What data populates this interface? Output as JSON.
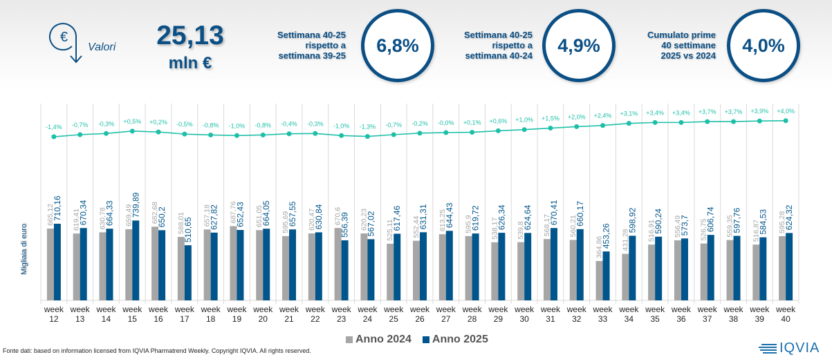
{
  "header": {
    "icon": "euro-down-arrow-icon",
    "metric_label": "Valori",
    "kpi_value": "25,13",
    "kpi_unit": "mln €",
    "stats": [
      {
        "label_lines": [
          "Settimana 40-25",
          "rispetto a",
          "settimana 39-25"
        ],
        "value": "6,8%"
      },
      {
        "label_lines": [
          "Settimana 40-25",
          "rispetto a",
          "settimana 40-24"
        ],
        "value": "4,9%"
      },
      {
        "label_lines": [
          "Cumulato prime",
          "40 settimane",
          "2025 vs 2024"
        ],
        "value": "4,0%"
      }
    ]
  },
  "colors": {
    "primary": "#0b4f85",
    "series_2024": "#a6a6a6",
    "series_2025": "#00568c",
    "line": "#1dbfa8"
  },
  "chart_data": {
    "type": "bar",
    "title": "",
    "xlabel": "",
    "ylabel": "Migliaia di euro",
    "ylim": [
      0,
      800
    ],
    "categories": [
      "week 12",
      "week 13",
      "week 14",
      "week 15",
      "week 16",
      "week 17",
      "week 18",
      "week 19",
      "week 20",
      "week 21",
      "week 22",
      "week 23",
      "week 24",
      "week 25",
      "week 26",
      "week 27",
      "week 28",
      "week 29",
      "week 30",
      "week 31",
      "week 32",
      "week 33",
      "week 34",
      "week 35",
      "week 36",
      "week 37",
      "week 38",
      "week 39",
      "week 40"
    ],
    "series": [
      {
        "name": "Anno 2024",
        "values": [
          665.12,
          619.41,
          630.78,
          659.49,
          682.68,
          588.01,
          657.18,
          687.76,
          651.05,
          595.69,
          620.47,
          670.6,
          620.23,
          525.11,
          552.44,
          613.25,
          595.9,
          538.17,
          539.8,
          568.17,
          560.21,
          364.86,
          431.28,
          516.91,
          556.49,
          526.75,
          559.35,
          516.87,
          595.28
        ],
        "labels": [
          "665,12",
          "619,41",
          "630,78",
          "659,49",
          "682,68",
          "588,01",
          "657,18",
          "687,76",
          "651,05",
          "595,69",
          "620,47",
          "670,6",
          "620,23",
          "525,11",
          "552,44",
          "613,25",
          "595,9",
          "538,17",
          "539,8",
          "568,17",
          "560,21",
          "364,86",
          "431,28",
          "516,91",
          "556,49",
          "526,75",
          "559,35",
          "516,87",
          "595,28"
        ]
      },
      {
        "name": "Anno 2025",
        "values": [
          710.16,
          670.34,
          664.33,
          739.89,
          650.2,
          510.65,
          627.82,
          652.43,
          664.05,
          657.55,
          630.84,
          556.39,
          567.02,
          617.46,
          631.31,
          644.43,
          619.72,
          626.34,
          624.64,
          670.41,
          660.17,
          453.26,
          598.92,
          590.24,
          573.7,
          606.74,
          597.76,
          584.53,
          624.32
        ],
        "labels": [
          "710,16",
          "670,34",
          "664,33",
          "739,89",
          "650,2",
          "510,65",
          "627,82",
          "652,43",
          "664,05",
          "657,55",
          "630,84",
          "556,39",
          "567,02",
          "617,46",
          "631,31",
          "644,43",
          "619,72",
          "626,34",
          "624,64",
          "670,41",
          "660,17",
          "453,26",
          "598,92",
          "590,24",
          "573,7",
          "606,74",
          "597,76",
          "584,53",
          "624,32"
        ]
      }
    ],
    "cumulative_change": {
      "name": "Cumulative % change",
      "values": [
        -1.4,
        -0.7,
        -0.3,
        0.5,
        0.2,
        -0.5,
        -0.8,
        -1.0,
        -0.8,
        -0.4,
        -0.3,
        -1.0,
        -1.3,
        -0.7,
        -0.2,
        -0.0,
        0.1,
        0.6,
        1.0,
        1.5,
        2.0,
        2.4,
        3.1,
        3.4,
        3.4,
        3.7,
        3.7,
        3.9,
        4.0
      ],
      "labels": [
        "-1,4%",
        "-0,7%",
        "-0,3%",
        "+0,5%",
        "+0,2%",
        "-0,5%",
        "-0,8%",
        "-1,0%",
        "-0,8%",
        "-0,4%",
        "-0,3%",
        "-1,0%",
        "-1,3%",
        "-0,7%",
        "-0,2%",
        "-0,0%",
        "+0,1%",
        "+0,6%",
        "+1,0%",
        "+1,5%",
        "+2,0%",
        "+2,4%",
        "+3,1%",
        "+3,4%",
        "+3,4%",
        "+3,7%",
        "+3,7%",
        "+3,9%",
        "+4,0%"
      ]
    },
    "legend": [
      "Anno 2024",
      "Anno 2025"
    ],
    "legend_position": "bottom",
    "grid": "vertical separators"
  },
  "footer": {
    "source": "Fonte dati: based on information licensed from IQVIA Pharmatrend Weekly. Copyright IQVIA. All rights reserved.",
    "logo_text": "IQVIA"
  }
}
